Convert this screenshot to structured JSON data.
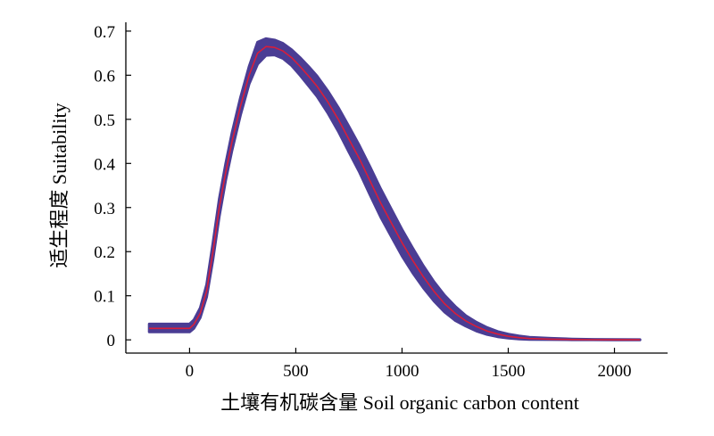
{
  "chart_data": {
    "type": "line",
    "xlabel": "土壤有机碳含量 Soil organic carbon content",
    "ylabel": "适生程度 Suitability",
    "xlim": [
      -300,
      2250
    ],
    "ylim": [
      -0.03,
      0.72
    ],
    "xticks": [
      0,
      500,
      1000,
      1500,
      2000
    ],
    "yticks": [
      0,
      0.1,
      0.2,
      0.3,
      0.4,
      0.5,
      0.6,
      0.7
    ],
    "xtick_labels": [
      "0",
      "500",
      "1000",
      "1500",
      "2000"
    ],
    "ytick_labels": [
      "0",
      "0.1",
      "0.2",
      "0.3",
      "0.4",
      "0.5",
      "0.6",
      "0.7"
    ],
    "grid": false,
    "series": [
      {
        "role": "mean",
        "color": "#d81e3a",
        "x": [
          -190,
          0,
          20,
          50,
          80,
          110,
          140,
          170,
          200,
          240,
          280,
          320,
          360,
          400,
          440,
          480,
          520,
          560,
          600,
          650,
          700,
          750,
          800,
          850,
          900,
          950,
          1000,
          1050,
          1100,
          1150,
          1200,
          1250,
          1300,
          1350,
          1400,
          1450,
          1500,
          1550,
          1600,
          1700,
          1800,
          1900,
          2000,
          2120
        ],
        "y": [
          0.026,
          0.026,
          0.035,
          0.06,
          0.11,
          0.2,
          0.3,
          0.38,
          0.45,
          0.53,
          0.6,
          0.65,
          0.665,
          0.663,
          0.655,
          0.64,
          0.62,
          0.598,
          0.575,
          0.54,
          0.5,
          0.455,
          0.41,
          0.36,
          0.31,
          0.265,
          0.22,
          0.18,
          0.143,
          0.11,
          0.082,
          0.06,
          0.043,
          0.03,
          0.02,
          0.013,
          0.008,
          0.005,
          0.003,
          0.0015,
          0.0008,
          0.0004,
          0.0002,
          0.0001
        ]
      },
      {
        "role": "uncertainty-band",
        "color": "#4a3d94",
        "x": [
          -190,
          0,
          20,
          50,
          80,
          110,
          140,
          170,
          200,
          240,
          280,
          320,
          360,
          400,
          440,
          480,
          520,
          560,
          600,
          650,
          700,
          750,
          800,
          850,
          900,
          950,
          1000,
          1050,
          1100,
          1150,
          1200,
          1250,
          1300,
          1350,
          1400,
          1450,
          1500,
          1550,
          1600,
          1700,
          1800,
          1900,
          2000,
          2120
        ],
        "upper": [
          0.036,
          0.036,
          0.045,
          0.072,
          0.125,
          0.22,
          0.32,
          0.4,
          0.47,
          0.55,
          0.62,
          0.675,
          0.683,
          0.68,
          0.672,
          0.658,
          0.64,
          0.62,
          0.598,
          0.565,
          0.527,
          0.484,
          0.44,
          0.392,
          0.342,
          0.296,
          0.25,
          0.208,
          0.168,
          0.132,
          0.101,
          0.076,
          0.055,
          0.04,
          0.028,
          0.019,
          0.013,
          0.009,
          0.006,
          0.0035,
          0.002,
          0.0012,
          0.0008,
          0.0006
        ],
        "lower": [
          0.018,
          0.018,
          0.026,
          0.05,
          0.097,
          0.182,
          0.28,
          0.362,
          0.43,
          0.51,
          0.58,
          0.625,
          0.645,
          0.646,
          0.638,
          0.622,
          0.6,
          0.576,
          0.552,
          0.515,
          0.473,
          0.426,
          0.38,
          0.328,
          0.278,
          0.234,
          0.19,
          0.152,
          0.118,
          0.088,
          0.063,
          0.044,
          0.031,
          0.02,
          0.012,
          0.007,
          0.004,
          0.002,
          0.001,
          0.0005,
          0.0002,
          0.0001,
          0,
          0
        ]
      }
    ]
  }
}
